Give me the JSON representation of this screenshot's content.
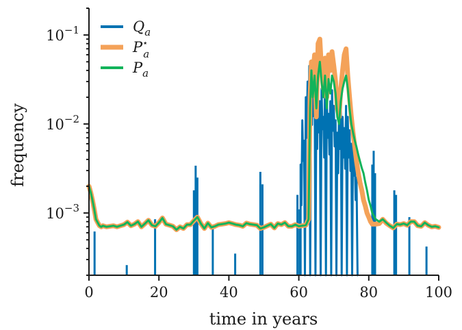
{
  "chart_data": {
    "type": "line",
    "title": "",
    "xlabel": "time in years",
    "ylabel": "frequency",
    "xlim": [
      0,
      100
    ],
    "ylim": [
      0.0002,
      0.2
    ],
    "yscale": "log",
    "grid": false,
    "legend_position": "top-left",
    "x_ticks": [
      0,
      20,
      40,
      60,
      80,
      100
    ],
    "x_tick_labels": [
      "0",
      "20",
      "40",
      "60",
      "80",
      "100"
    ],
    "y_ticks": [
      0.001,
      0.01,
      0.1
    ],
    "y_tick_labels": [
      {
        "base": "10",
        "exp": "−3"
      },
      {
        "base": "10",
        "exp": "−2"
      },
      {
        "base": "10",
        "exp": "−1"
      }
    ],
    "series": [
      {
        "name": "Qa",
        "legend_main": "Q",
        "legend_sub": "a",
        "legend_sup": "",
        "color": "#0072b2",
        "width": 3,
        "style": "spikes",
        "baseline": 0.0002,
        "x": [
          1.6,
          10.8,
          18.9,
          30.0,
          30.5,
          31.0,
          35.4,
          41.8,
          49.0,
          49.6,
          59.6,
          60.2
        ],
        "y": [
          0.00062,
          0.00026,
          0.00085,
          0.0018,
          0.0034,
          0.0025,
          0.0007,
          0.00035,
          0.0029,
          0.0021,
          0.0016,
          0.0011
        ],
        "x2": [
          60.5,
          61.0,
          61.5,
          62.0,
          62.5,
          63.0,
          63.5,
          64.0,
          64.5,
          65.0,
          65.5,
          66.0,
          66.5,
          67.0,
          67.5,
          68.0,
          68.5,
          69.0,
          69.5,
          70.0,
          70.5,
          71.0,
          71.5,
          72.0,
          72.5,
          73.0,
          73.5,
          74.0,
          74.5,
          75.0,
          75.5,
          76.0,
          76.5
        ],
        "y2": [
          0.0035,
          0.011,
          0.0065,
          0.02,
          0.03,
          0.045,
          0.028,
          0.035,
          0.04,
          0.015,
          0.023,
          0.018,
          0.025,
          0.012,
          0.028,
          0.02,
          0.013,
          0.018,
          0.024,
          0.016,
          0.011,
          0.008,
          0.015,
          0.022,
          0.012,
          0.009,
          0.016,
          0.012,
          0.0085,
          0.006,
          0.0075,
          0.004,
          0.0025
        ],
        "x3": [
          81.0,
          81.4,
          81.8,
          87.3,
          87.8,
          91.6,
          96.5
        ],
        "y3": [
          0.0035,
          0.005,
          0.0028,
          0.0018,
          0.0016,
          0.0009,
          0.00042
        ]
      },
      {
        "name": "P*a",
        "legend_main": "P",
        "legend_sub": "a",
        "legend_sup": "⋆",
        "color": "#f4a259",
        "width": 7,
        "style": "line",
        "x": [
          0,
          0.5,
          1,
          1.5,
          2,
          2.5,
          3,
          3.5,
          4,
          5,
          6,
          7,
          8,
          9,
          10,
          11,
          12,
          13,
          14,
          15,
          16,
          17,
          18,
          19,
          20,
          21,
          22,
          23,
          24,
          25,
          26,
          27,
          28,
          29,
          30,
          31,
          32,
          33,
          34,
          35,
          36,
          37,
          38,
          39,
          40,
          41,
          42,
          43,
          44,
          45,
          46,
          47,
          48,
          49,
          50,
          51,
          52,
          53,
          54,
          55,
          56,
          57,
          58,
          59,
          60,
          61,
          62,
          62.8,
          63.2,
          63.6,
          64,
          64.5,
          65,
          65.5,
          66,
          66.5,
          67,
          67.5,
          68,
          68.5,
          69,
          69.5,
          70,
          70.5,
          71,
          71.5,
          72,
          72.5,
          73,
          73.5,
          74,
          74.5,
          75,
          75.5,
          76,
          76.5,
          77,
          77.5,
          78,
          78.5,
          79,
          79.5,
          80,
          80.5,
          81,
          82,
          83,
          84,
          85,
          86,
          87,
          88,
          89,
          90,
          91,
          92,
          93,
          94,
          95,
          96,
          97,
          98,
          99,
          100
        ],
        "y": [
          0.002,
          0.0017,
          0.0014,
          0.0011,
          0.00085,
          0.00078,
          0.00072,
          0.0007,
          0.00072,
          0.0007,
          0.00071,
          0.00072,
          0.0007,
          0.00072,
          0.00074,
          0.00079,
          0.00072,
          0.00075,
          0.0008,
          0.0007,
          0.00076,
          0.00083,
          0.00073,
          0.00071,
          0.00078,
          0.00088,
          0.00075,
          0.00073,
          0.00071,
          0.00065,
          0.0007,
          0.00067,
          0.00074,
          0.00074,
          0.00082,
          0.0009,
          0.00076,
          0.00067,
          0.00077,
          0.00069,
          0.00071,
          0.00074,
          0.00075,
          0.00076,
          0.00078,
          0.00076,
          0.00074,
          0.00073,
          0.00071,
          0.00077,
          0.00075,
          0.00074,
          0.00073,
          0.00067,
          0.00069,
          0.00072,
          0.00075,
          0.00068,
          0.00076,
          0.00074,
          0.00078,
          0.00071,
          0.00071,
          0.00074,
          0.00071,
          0.00072,
          0.00073,
          0.00085,
          0.02,
          0.05,
          0.035,
          0.06,
          0.012,
          0.08,
          0.09,
          0.04,
          0.025,
          0.055,
          0.02,
          0.06,
          0.04,
          0.065,
          0.045,
          0.03,
          0.015,
          0.012,
          0.025,
          0.04,
          0.06,
          0.07,
          0.035,
          0.02,
          0.012,
          0.008,
          0.0055,
          0.0038,
          0.0028,
          0.0022,
          0.0018,
          0.0014,
          0.0012,
          0.001,
          0.0009,
          0.0008,
          0.00075,
          0.00075,
          0.00076,
          0.00085,
          0.00077,
          0.00072,
          0.00068,
          0.00075,
          0.00074,
          0.00076,
          0.00073,
          0.0008,
          0.0008,
          0.00072,
          0.00071,
          0.00078,
          0.00073,
          0.0007,
          0.00071,
          0.00069
        ],
        "y_label": "frequency"
      },
      {
        "name": "Pa",
        "legend_main": "P",
        "legend_sub": "a",
        "legend_sup": "",
        "color": "#12b35a",
        "width": 3,
        "style": "line",
        "x": [
          0,
          0.5,
          1,
          1.5,
          2,
          2.5,
          3,
          3.5,
          4,
          5,
          6,
          7,
          8,
          9,
          10,
          11,
          12,
          13,
          14,
          15,
          16,
          17,
          18,
          19,
          20,
          21,
          22,
          23,
          24,
          25,
          26,
          27,
          28,
          29,
          30,
          31,
          32,
          33,
          34,
          35,
          36,
          37,
          38,
          39,
          40,
          41,
          42,
          43,
          44,
          45,
          46,
          47,
          48,
          49,
          50,
          51,
          52,
          53,
          54,
          55,
          56,
          57,
          58,
          59,
          60,
          61,
          62,
          62.8,
          63.2,
          63.6,
          64,
          64.5,
          65,
          65.5,
          66,
          66.5,
          67,
          67.5,
          68,
          68.5,
          69,
          69.5,
          70,
          70.5,
          71,
          71.5,
          72,
          72.5,
          73,
          73.5,
          74,
          74.5,
          75,
          75.5,
          76,
          76.5,
          77,
          77.5,
          78,
          78.5,
          79,
          79.5,
          80,
          80.5,
          81,
          82,
          83,
          84,
          85,
          86,
          87,
          88,
          89,
          90,
          91,
          92,
          93,
          94,
          95,
          96,
          97,
          98,
          99,
          100
        ],
        "y": [
          0.002,
          0.0017,
          0.0014,
          0.0011,
          0.00085,
          0.00078,
          0.00072,
          0.0007,
          0.00072,
          0.0007,
          0.00071,
          0.00072,
          0.0007,
          0.00072,
          0.00074,
          0.00079,
          0.00072,
          0.00075,
          0.0008,
          0.0007,
          0.00076,
          0.00083,
          0.00073,
          0.00071,
          0.00078,
          0.00088,
          0.00075,
          0.00073,
          0.00071,
          0.00065,
          0.0007,
          0.00067,
          0.00074,
          0.00074,
          0.00082,
          0.0009,
          0.00076,
          0.00067,
          0.00077,
          0.00069,
          0.00071,
          0.00074,
          0.00075,
          0.00076,
          0.00078,
          0.00076,
          0.00074,
          0.00073,
          0.00071,
          0.00077,
          0.00075,
          0.00074,
          0.00073,
          0.00067,
          0.00069,
          0.00072,
          0.00075,
          0.00068,
          0.00076,
          0.00074,
          0.00078,
          0.00071,
          0.00071,
          0.00074,
          0.00071,
          0.00072,
          0.00073,
          0.00085,
          0.015,
          0.04,
          0.02,
          0.035,
          0.015,
          0.035,
          0.05,
          0.03,
          0.02,
          0.035,
          0.015,
          0.032,
          0.022,
          0.035,
          0.03,
          0.022,
          0.012,
          0.01,
          0.018,
          0.025,
          0.03,
          0.035,
          0.025,
          0.015,
          0.01,
          0.008,
          0.0065,
          0.0055,
          0.0045,
          0.0038,
          0.0032,
          0.0028,
          0.0022,
          0.0018,
          0.0014,
          0.0012,
          0.001,
          0.00085,
          0.0008,
          0.00085,
          0.00078,
          0.00072,
          0.00068,
          0.00075,
          0.00074,
          0.00076,
          0.00073,
          0.0008,
          0.0008,
          0.00072,
          0.00071,
          0.00078,
          0.00073,
          0.0007,
          0.00071,
          0.00069
        ]
      }
    ]
  }
}
